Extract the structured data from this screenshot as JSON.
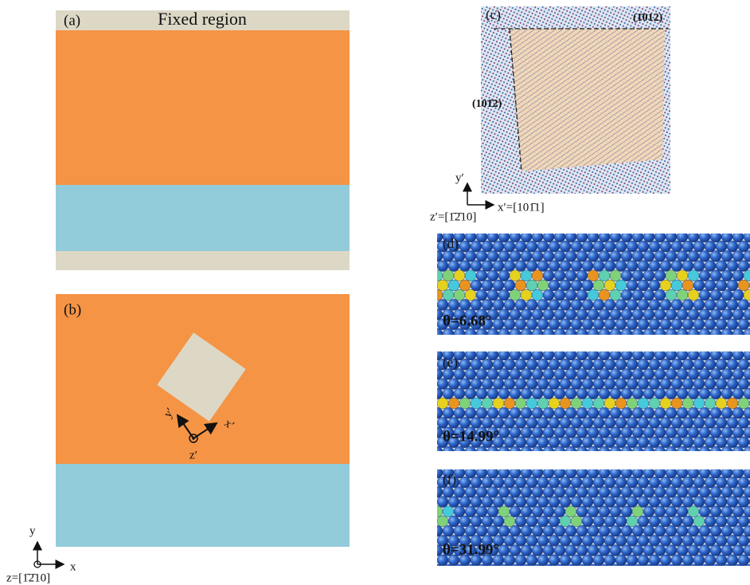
{
  "panel_a": {
    "label": "(a)",
    "fixed_region": "Fixed region"
  },
  "panel_b": {
    "label": "(b)",
    "axis_x": "x′",
    "axis_y": "y′",
    "axis_z": "z′"
  },
  "axes_xy": {
    "y": "y",
    "x": "x",
    "z": "z=[1̄2̄10]"
  },
  "panel_c": {
    "label": "(c)",
    "plane_top": "(1̄012)",
    "plane_left": "(101̄2)",
    "axis_y": "y′",
    "axis_x": "x′=[101̄1]",
    "axis_z": "z′=[1̄2̄10]"
  },
  "panel_d": {
    "label": "(d)",
    "angle": "θ=6.68°"
  },
  "panel_e": {
    "label": "(e)",
    "angle": "θ=14.99°"
  },
  "panel_f": {
    "label": "(f)",
    "angle": "θ=31.99°"
  }
}
